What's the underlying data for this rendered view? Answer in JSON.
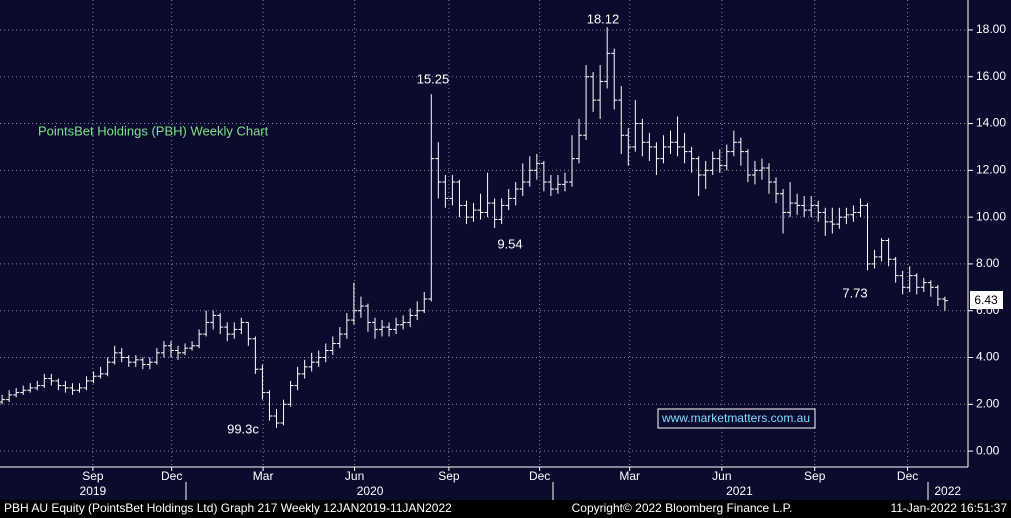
{
  "chart_data": {
    "type": "ohlc",
    "title": "PointsBet Holdings (PBH) Weekly Chart",
    "source": "www.marketmatters.com.au",
    "annotations": [
      "15.25",
      "18.12",
      "9.54",
      "99.3c",
      "7.73"
    ],
    "footer": [
      "PBH AU Equity (PointsBet Holdings Ltd) Graph 217  Weekly 12JAN2019-11JAN2022",
      "Copyright© 2022 Bloomberg Finance L.P.",
      "11-Jan-2022 16:51:37"
    ],
    "color": "#ffffff",
    "grid": true,
    "xlim": [
      -0.3,
      137
    ],
    "xticks": [
      {
        "value": 12.9,
        "label": "Sep"
      },
      {
        "value": 24.1,
        "label": "Dec"
      },
      {
        "value": 37.1,
        "label": "Mar"
      },
      {
        "value": 50.1,
        "label": "Jun"
      },
      {
        "value": 63.5,
        "label": "Sep"
      },
      {
        "value": 76.4,
        "label": "Dec"
      },
      {
        "value": 89.2,
        "label": "Mar"
      },
      {
        "value": 102.3,
        "label": "Jun"
      },
      {
        "value": 115.5,
        "label": "Sep"
      },
      {
        "value": 128.7,
        "label": "Dec"
      }
    ],
    "years": [
      {
        "value": 12.9,
        "label": "2019"
      },
      {
        "value": 52.3,
        "label": "2020"
      },
      {
        "value": 104.8,
        "label": "2021"
      },
      {
        "value": 134.4,
        "label": "2022"
      }
    ],
    "ylim": [
      -0.68,
      19.28
    ],
    "yticks": [
      {
        "value": 0,
        "label": "0.00"
      },
      {
        "value": 2,
        "label": "2.00"
      },
      {
        "value": 4,
        "label": "4.00"
      },
      {
        "value": 6,
        "label": "6.00"
      },
      {
        "value": 8,
        "label": "8.00"
      },
      {
        "value": 10,
        "label": "10.00"
      },
      {
        "value": 12,
        "label": "12.00"
      },
      {
        "value": 14,
        "label": "14.00"
      },
      {
        "value": 16,
        "label": "16.00"
      },
      {
        "value": 18,
        "label": "18.00"
      }
    ],
    "open": [
      2.1,
      2.2,
      2.4,
      2.5,
      2.6,
      2.7,
      2.8,
      3.1,
      3.0,
      2.8,
      2.7,
      2.6,
      2.7,
      3.0,
      3.2,
      3.3,
      3.8,
      4.2,
      4.0,
      3.8,
      3.9,
      3.7,
      3.8,
      4.2,
      4.5,
      4.3,
      4.2,
      4.4,
      4.5,
      5.0,
      5.5,
      5.8,
      5.3,
      5.0,
      5.2,
      5.5,
      4.8,
      3.5,
      2.5,
      1.5,
      1.2,
      2.0,
      2.8,
      3.3,
      3.6,
      3.8,
      4.0,
      4.3,
      4.6,
      5.0,
      5.6,
      6.0,
      6.2,
      5.5,
      5.2,
      5.3,
      5.2,
      5.4,
      5.5,
      5.8,
      6.0,
      6.5,
      12.5,
      11.5,
      10.8,
      11.5,
      10.5,
      10.0,
      10.3,
      10.2,
      10.6,
      9.9,
      10.5,
      10.8,
      11.2,
      11.5,
      12.0,
      12.3,
      11.5,
      11.2,
      11.4,
      11.5,
      12.5,
      13.5,
      16.0,
      15.0,
      15.8,
      17.0,
      15.0,
      13.5,
      13.0,
      14.0,
      13.2,
      13.0,
      12.5,
      13.0,
      13.2,
      13.0,
      12.8,
      12.5,
      11.8,
      12.0,
      12.5,
      12.2,
      12.8,
      13.2,
      12.8,
      11.8,
      12.0,
      12.1,
      11.5,
      11.0,
      10.2,
      10.6,
      10.5,
      10.3,
      10.5,
      10.2,
      9.8,
      9.7,
      10.0,
      10.1,
      10.2,
      10.5,
      8.0,
      8.3,
      9.0,
      8.2,
      7.5,
      7.0,
      7.5,
      7.0,
      7.2,
      7.0,
      6.5
    ],
    "high": [
      2.4,
      2.6,
      2.7,
      2.8,
      2.9,
      3.0,
      3.3,
      3.3,
      3.1,
      3.0,
      2.9,
      2.9,
      3.2,
      3.4,
      3.6,
      4.0,
      4.5,
      4.4,
      4.1,
      4.1,
      4.0,
      4.0,
      4.4,
      4.7,
      4.7,
      4.5,
      4.6,
      4.7,
      5.2,
      6.0,
      6.0,
      5.9,
      5.5,
      5.5,
      5.7,
      5.5,
      4.9,
      3.7,
      2.6,
      1.8,
      2.2,
      3.0,
      3.6,
      3.9,
      4.2,
      4.3,
      4.6,
      4.9,
      5.3,
      5.9,
      7.2,
      6.6,
      6.3,
      5.7,
      5.6,
      5.5,
      5.7,
      5.8,
      6.1,
      6.4,
      6.8,
      15.25,
      13.2,
      11.8,
      11.8,
      11.6,
      10.7,
      10.6,
      11.0,
      11.9,
      10.8,
      10.8,
      11.2,
      11.5,
      12.3,
      12.6,
      12.7,
      12.4,
      11.8,
      11.8,
      11.9,
      13.5,
      14.2,
      16.5,
      16.2,
      16.5,
      18.12,
      17.2,
      15.6,
      13.8,
      15.0,
      14.2,
      13.6,
      13.2,
      13.5,
      13.7,
      14.3,
      13.6,
      13.0,
      12.6,
      12.4,
      12.8,
      12.9,
      13.1,
      13.7,
      13.4,
      12.9,
      12.4,
      12.5,
      12.3,
      11.7,
      11.2,
      11.5,
      11.0,
      10.9,
      10.9,
      10.7,
      10.4,
      10.4,
      10.4,
      10.4,
      10.5,
      10.8,
      10.6,
      8.6,
      9.1,
      9.1,
      8.3,
      7.7,
      7.9,
      7.6,
      7.4,
      7.3,
      7.1,
      6.6
    ],
    "low": [
      2.0,
      2.1,
      2.3,
      2.4,
      2.5,
      2.6,
      2.7,
      2.8,
      2.6,
      2.5,
      2.4,
      2.5,
      2.6,
      2.9,
      3.1,
      3.2,
      3.7,
      3.8,
      3.6,
      3.6,
      3.5,
      3.5,
      3.7,
      4.0,
      4.0,
      3.9,
      4.1,
      4.3,
      4.4,
      4.9,
      5.2,
      5.0,
      4.7,
      4.8,
      5.0,
      4.5,
      3.3,
      2.2,
      1.3,
      0.993,
      1.1,
      1.9,
      2.6,
      3.1,
      3.4,
      3.6,
      3.8,
      4.1,
      4.4,
      4.8,
      5.4,
      5.7,
      5.1,
      4.8,
      4.9,
      4.9,
      5.0,
      5.2,
      5.3,
      5.6,
      5.9,
      6.4,
      10.8,
      10.4,
      10.5,
      10.0,
      9.7,
      9.8,
      9.9,
      10.0,
      9.54,
      9.7,
      10.3,
      10.5,
      10.9,
      11.3,
      11.6,
      11.1,
      10.9,
      11.0,
      11.1,
      11.3,
      12.3,
      13.3,
      14.5,
      14.2,
      15.5,
      14.6,
      12.7,
      12.2,
      12.8,
      12.6,
      12.4,
      11.8,
      12.3,
      12.7,
      12.6,
      12.3,
      11.9,
      10.9,
      11.2,
      11.8,
      11.9,
      12.0,
      12.6,
      12.2,
      11.5,
      11.4,
      11.6,
      11.0,
      10.6,
      9.3,
      10.0,
      10.1,
      10.0,
      10.0,
      9.8,
      9.2,
      9.3,
      9.5,
      9.7,
      9.8,
      10.0,
      7.73,
      7.8,
      8.1,
      7.9,
      7.2,
      6.7,
      6.8,
      6.7,
      6.8,
      6.6,
      6.2,
      6.0
    ],
    "close": [
      2.2,
      2.4,
      2.5,
      2.6,
      2.7,
      2.8,
      3.1,
      3.0,
      2.8,
      2.7,
      2.6,
      2.7,
      3.0,
      3.2,
      3.3,
      3.8,
      4.2,
      4.0,
      3.8,
      3.9,
      3.7,
      3.8,
      4.2,
      4.5,
      4.3,
      4.2,
      4.4,
      4.5,
      5.0,
      5.5,
      5.8,
      5.3,
      5.0,
      5.2,
      5.5,
      4.8,
      3.5,
      2.5,
      1.5,
      1.2,
      2.0,
      2.8,
      3.3,
      3.6,
      3.8,
      4.0,
      4.3,
      4.6,
      5.0,
      5.6,
      6.0,
      6.2,
      5.5,
      5.2,
      5.3,
      5.2,
      5.4,
      5.5,
      5.8,
      6.0,
      6.5,
      12.5,
      11.5,
      10.8,
      11.5,
      10.5,
      10.0,
      10.3,
      10.2,
      10.6,
      9.9,
      10.5,
      10.8,
      11.2,
      11.5,
      12.0,
      12.3,
      11.5,
      11.2,
      11.4,
      11.5,
      12.5,
      13.5,
      16.0,
      15.0,
      15.8,
      17.0,
      15.0,
      13.5,
      13.0,
      14.0,
      13.2,
      13.0,
      12.5,
      13.0,
      13.2,
      13.0,
      12.8,
      12.5,
      11.8,
      12.0,
      12.5,
      12.2,
      12.8,
      13.2,
      12.8,
      11.8,
      12.0,
      12.1,
      11.5,
      11.0,
      10.2,
      10.6,
      10.5,
      10.3,
      10.5,
      10.2,
      9.8,
      9.7,
      10.0,
      10.1,
      10.2,
      10.5,
      8.0,
      8.3,
      9.0,
      8.2,
      7.5,
      7.0,
      7.5,
      7.0,
      7.2,
      7.0,
      6.5,
      6.43
    ]
  }
}
